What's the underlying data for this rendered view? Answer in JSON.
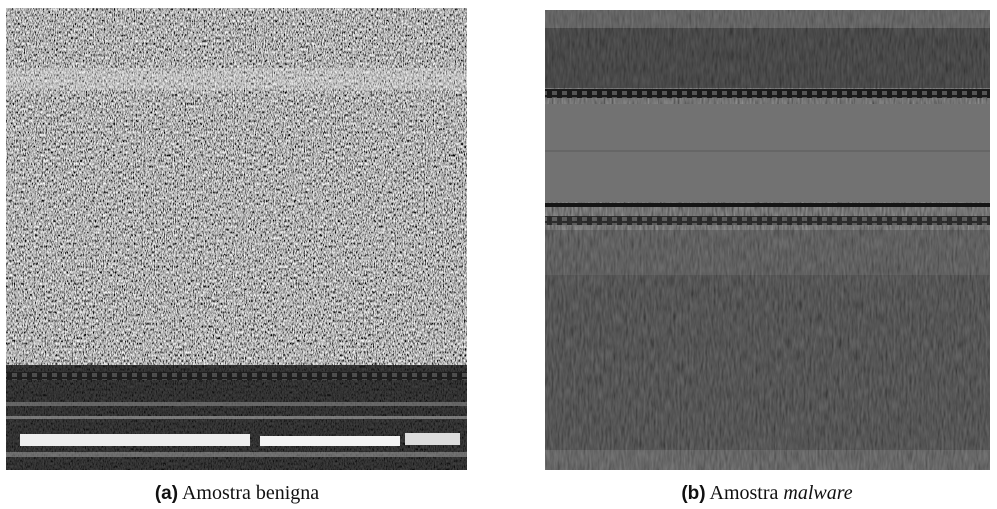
{
  "figures": [
    {
      "label": "(a)",
      "caption": "Amostra benigna"
    },
    {
      "label": "(b)",
      "caption": "Amostra ",
      "caption_italic": "malware"
    }
  ]
}
